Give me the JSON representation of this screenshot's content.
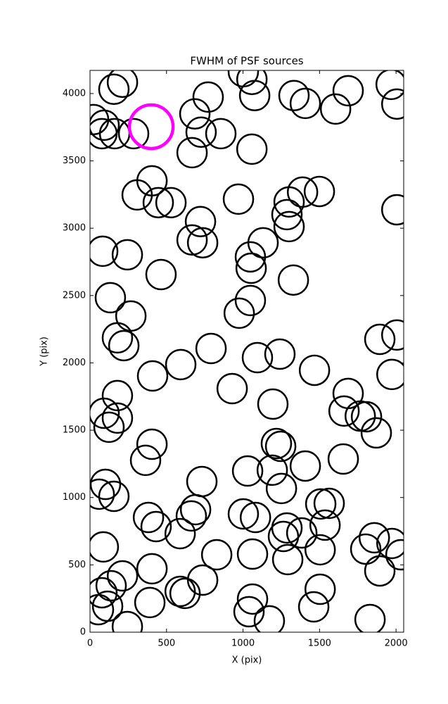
{
  "chart_data": {
    "type": "scatter",
    "title": "FWHM of PSF sources",
    "x_label": "X (pix)",
    "y_label": "Y (pix)",
    "xlim": [
      0,
      2050
    ],
    "ylim": [
      0,
      4172
    ],
    "xticks": [
      0,
      500,
      1000,
      1500,
      2000
    ],
    "yticks": [
      0,
      500,
      1000,
      1500,
      2000,
      2500,
      3000,
      3500,
      4000
    ],
    "series": [
      {
        "color": "#000000",
        "x": [
          212,
          156,
          23,
          92,
          78,
          161,
          285,
          772,
          685,
          726,
          667,
          855,
          1002,
          1058,
          1076,
          1058,
          1333,
          1407,
          1605,
          1687,
          1968,
          2005,
          2005,
          405,
          308,
          446,
          529,
          722,
          667,
          736,
          970,
          1301,
          1389,
          1499,
          1287,
          1301,
          1131,
          1048,
          1053,
          1329,
          83,
          244,
          464,
          133,
          267,
          975,
          1048,
          179,
          221,
          791,
          593,
          409,
          1094,
          1241,
          1467,
          1894,
          2005,
          1973,
          179,
          92,
          179,
          124,
          929,
          1195,
          1687,
          1660,
          1766,
          1807,
          1871,
          405,
          363,
          1218,
          1246,
          1407,
          1655,
          1030,
          1191,
          1251,
          731,
          101,
          60,
          156,
          690,
          662,
          382,
          432,
          589,
          1002,
          1081,
          1287,
          1264,
          1384,
          1508,
          1563,
          1536,
          1504,
          1802,
          1858,
          1973,
          2032,
          87,
          828,
          1062,
          1292,
          405,
          736,
          212,
          138,
          78,
          55,
          115,
          589,
          621,
          391,
          244,
          1062,
          1039,
          1172,
          1462,
          1504,
          1830,
          1894
        ],
        "y": [
          4084,
          4032,
          3807,
          3765,
          3702,
          3702,
          3702,
          3974,
          3849,
          3713,
          3561,
          3702,
          4162,
          4105,
          3985,
          3587,
          3985,
          3927,
          3885,
          4021,
          4068,
          3922,
          3137,
          3352,
          3247,
          3190,
          3190,
          3049,
          2913,
          2892,
          3216,
          3195,
          3268,
          3273,
          3101,
          3012,
          2892,
          2787,
          2703,
          2615,
          2829,
          2803,
          2656,
          2484,
          2348,
          2369,
          2463,
          2186,
          2128,
          2107,
          1987,
          1903,
          2039,
          2065,
          1945,
          2175,
          2207,
          1914,
          1757,
          1626,
          1590,
          1522,
          1809,
          1694,
          1773,
          1642,
          1605,
          1600,
          1480,
          1396,
          1276,
          1401,
          1380,
          1234,
          1286,
          1197,
          1203,
          1067,
          1119,
          1098,
          1025,
          1009,
          910,
          863,
          852,
          784,
          732,
          878,
          852,
          774,
          711,
          737,
          952,
          957,
          795,
          612,
          617,
          701,
          659,
          575,
          633,
          575,
          580,
          539,
          471,
          387,
          418,
          345,
          293,
          167,
          193,
          303,
          288,
          220,
          42,
          246,
          152,
          84,
          188,
          319,
          94,
          455
        ]
      },
      {
        "color": "#ff00ff",
        "x": [
          400
        ],
        "y": [
          3754
        ]
      }
    ]
  }
}
